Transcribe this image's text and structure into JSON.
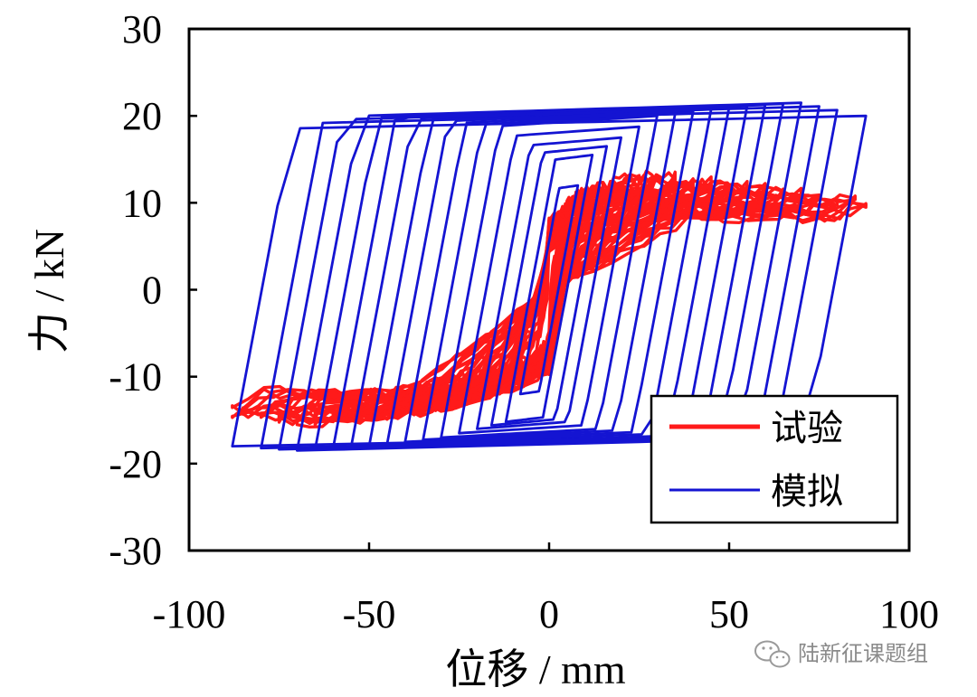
{
  "chart_data": {
    "type": "line",
    "xlabel": "位移 / mm",
    "ylabel": "力 / kN",
    "xlim": [
      -100,
      100
    ],
    "ylim": [
      -30,
      30
    ],
    "xticks": [
      -100,
      -50,
      0,
      50,
      100
    ],
    "yticks": [
      -30,
      -20,
      -10,
      0,
      10,
      20,
      30
    ],
    "grid": false,
    "legend_position": "bottom-right",
    "series": [
      {
        "name": "试验",
        "color": "#ff1a1a",
        "amplitudes": [
          10,
          15,
          20,
          25,
          30,
          35,
          40,
          45,
          50,
          55,
          60,
          65,
          70,
          75,
          80,
          85,
          88
        ],
        "envelope": {
          "x": [
            -88,
            -70,
            -50,
            -30,
            -10,
            0,
            10,
            30,
            50,
            70,
            88
          ],
          "y": [
            -14,
            -15,
            -14,
            -12,
            -10,
            0,
            11,
            13,
            12,
            11,
            10
          ]
        }
      },
      {
        "name": "模拟",
        "color": "#1414d2",
        "amplitudes": [
          8,
          12,
          16,
          20,
          25,
          30,
          35,
          40,
          45,
          50,
          55,
          60,
          65,
          70,
          75,
          80,
          88
        ],
        "envelope": {
          "x": [
            -88,
            -70,
            -50,
            -30,
            -10,
            0,
            10,
            30,
            50,
            70,
            88
          ],
          "y": [
            -18,
            -18.5,
            -18,
            -17,
            -15,
            0,
            15,
            20,
            21,
            21.5,
            20
          ]
        }
      }
    ]
  },
  "watermark": {
    "text": "陆新征课题组",
    "icon": "wechat-icon"
  }
}
